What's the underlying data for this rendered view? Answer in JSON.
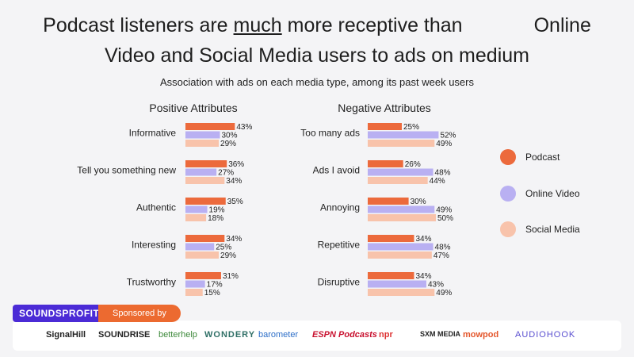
{
  "headline": {
    "line1a": "Podcast listeners are ",
    "line1u": "much",
    "line1b": " more receptive than",
    "line1c": "Online",
    "line2": "Video and Social Media users to ads on medium"
  },
  "subtitle": "Association with ads on each media type, among its past week users",
  "colors": {
    "podcast": "#ec6a3c",
    "online_video": "#b9b0f2",
    "social_media": "#f8c3ab"
  },
  "chart_data": [
    {
      "type": "bar",
      "title": "Positive Attributes",
      "categories": [
        "Informative",
        "Tell you something new",
        "Authentic",
        "Interesting",
        "Trustworthy"
      ],
      "series": [
        {
          "name": "Podcast",
          "values": [
            43,
            36,
            35,
            34,
            31
          ]
        },
        {
          "name": "Online Video",
          "values": [
            30,
            27,
            19,
            25,
            17
          ]
        },
        {
          "name": "Social Media",
          "values": [
            29,
            34,
            18,
            29,
            15
          ]
        }
      ],
      "value_suffix": "%"
    },
    {
      "type": "bar",
      "title": "Negative Attributes",
      "categories": [
        "Too many ads",
        "Ads I avoid",
        "Annoying",
        "Repetitive",
        "Disruptive"
      ],
      "series": [
        {
          "name": "Podcast",
          "values": [
            25,
            26,
            30,
            34,
            34
          ]
        },
        {
          "name": "Online Video",
          "values": [
            52,
            48,
            49,
            48,
            43
          ]
        },
        {
          "name": "Social Media",
          "values": [
            49,
            44,
            50,
            47,
            49
          ]
        }
      ],
      "value_suffix": "%"
    }
  ],
  "legend": [
    "Podcast",
    "Online Video",
    "Social Media"
  ],
  "footer": {
    "brand": "SOUNDSPROFITABLE",
    "sponsored": "Sponsored by",
    "logos": [
      "SignalHill",
      "SOUNDRISE",
      "betterhelp",
      "WONDERY",
      "barometer",
      "ESPN Podcasts",
      "npr",
      "SXM MEDIA",
      "mowpod",
      "AUDIOHOOK"
    ]
  }
}
